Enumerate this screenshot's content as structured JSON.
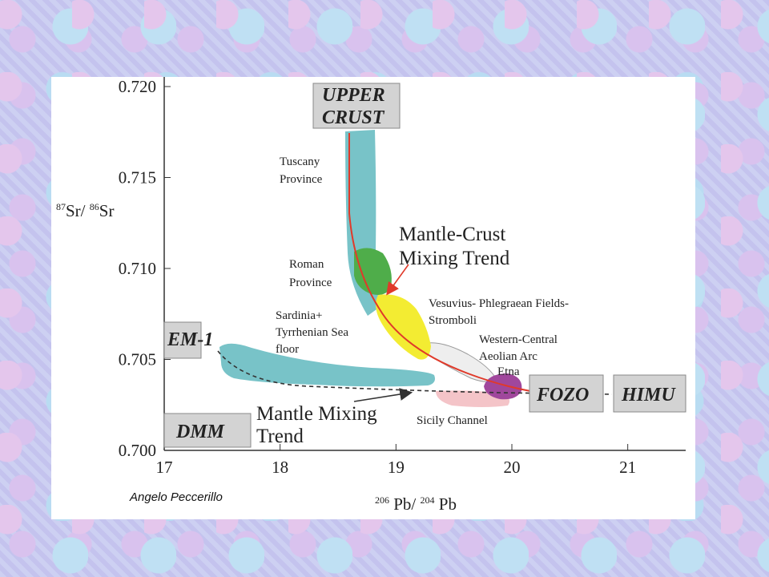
{
  "chart_data": {
    "type": "scatter",
    "xlabel": "206 Pb/ 204 Pb",
    "ylabel": "87Sr/ 86Sr",
    "xlim": [
      17,
      21.5
    ],
    "ylim": [
      0.7,
      0.72
    ],
    "xticks": [
      "17",
      "18",
      "19",
      "20",
      "21"
    ],
    "yticks": [
      "0.700",
      "0.705",
      "0.710",
      "0.715",
      "0.720"
    ],
    "grid": false,
    "endmembers": [
      {
        "name": "UPPER",
        "name2": "CRUST",
        "x": 18.6,
        "y": 0.719
      },
      {
        "name": "EM-1",
        "x": 17.15,
        "y": 0.7057
      },
      {
        "name": "DMM",
        "x": 17.15,
        "y": 0.7008
      },
      {
        "name": "FOZO",
        "x": 20.5,
        "y": 0.7025
      },
      {
        "name": "HIMU",
        "x": 21.2,
        "y": 0.7027
      }
    ],
    "fields": [
      {
        "name": "Tuscany",
        "name2": "Province",
        "color": "#78c3c8"
      },
      {
        "name": "Roman",
        "name2": "Province",
        "color": "#4fad4a"
      },
      {
        "name": "Vesuvius- Phlegraean Fields-",
        "name2": "Stromboli",
        "color": "#f3ec32"
      },
      {
        "name": "Western-Central",
        "name2": "Aeolian Arc",
        "color": "#eeeeee"
      },
      {
        "name": "Etna",
        "color": "#a0479c"
      },
      {
        "name": "Sicily Channel",
        "color": "#f4c4c8"
      },
      {
        "name": "Sardinia+",
        "name2": "Tyrrhenian Sea",
        "name3": "floor",
        "color": "#78c3c8"
      }
    ],
    "trends": [
      {
        "name": "Mantle-Crust",
        "name2": "Mixing Trend",
        "color": "#e03a2a"
      },
      {
        "name": "Mantle Mixing",
        "name2": "Trend",
        "color": "#333333"
      }
    ]
  },
  "credit": "Angelo Peccerillo"
}
